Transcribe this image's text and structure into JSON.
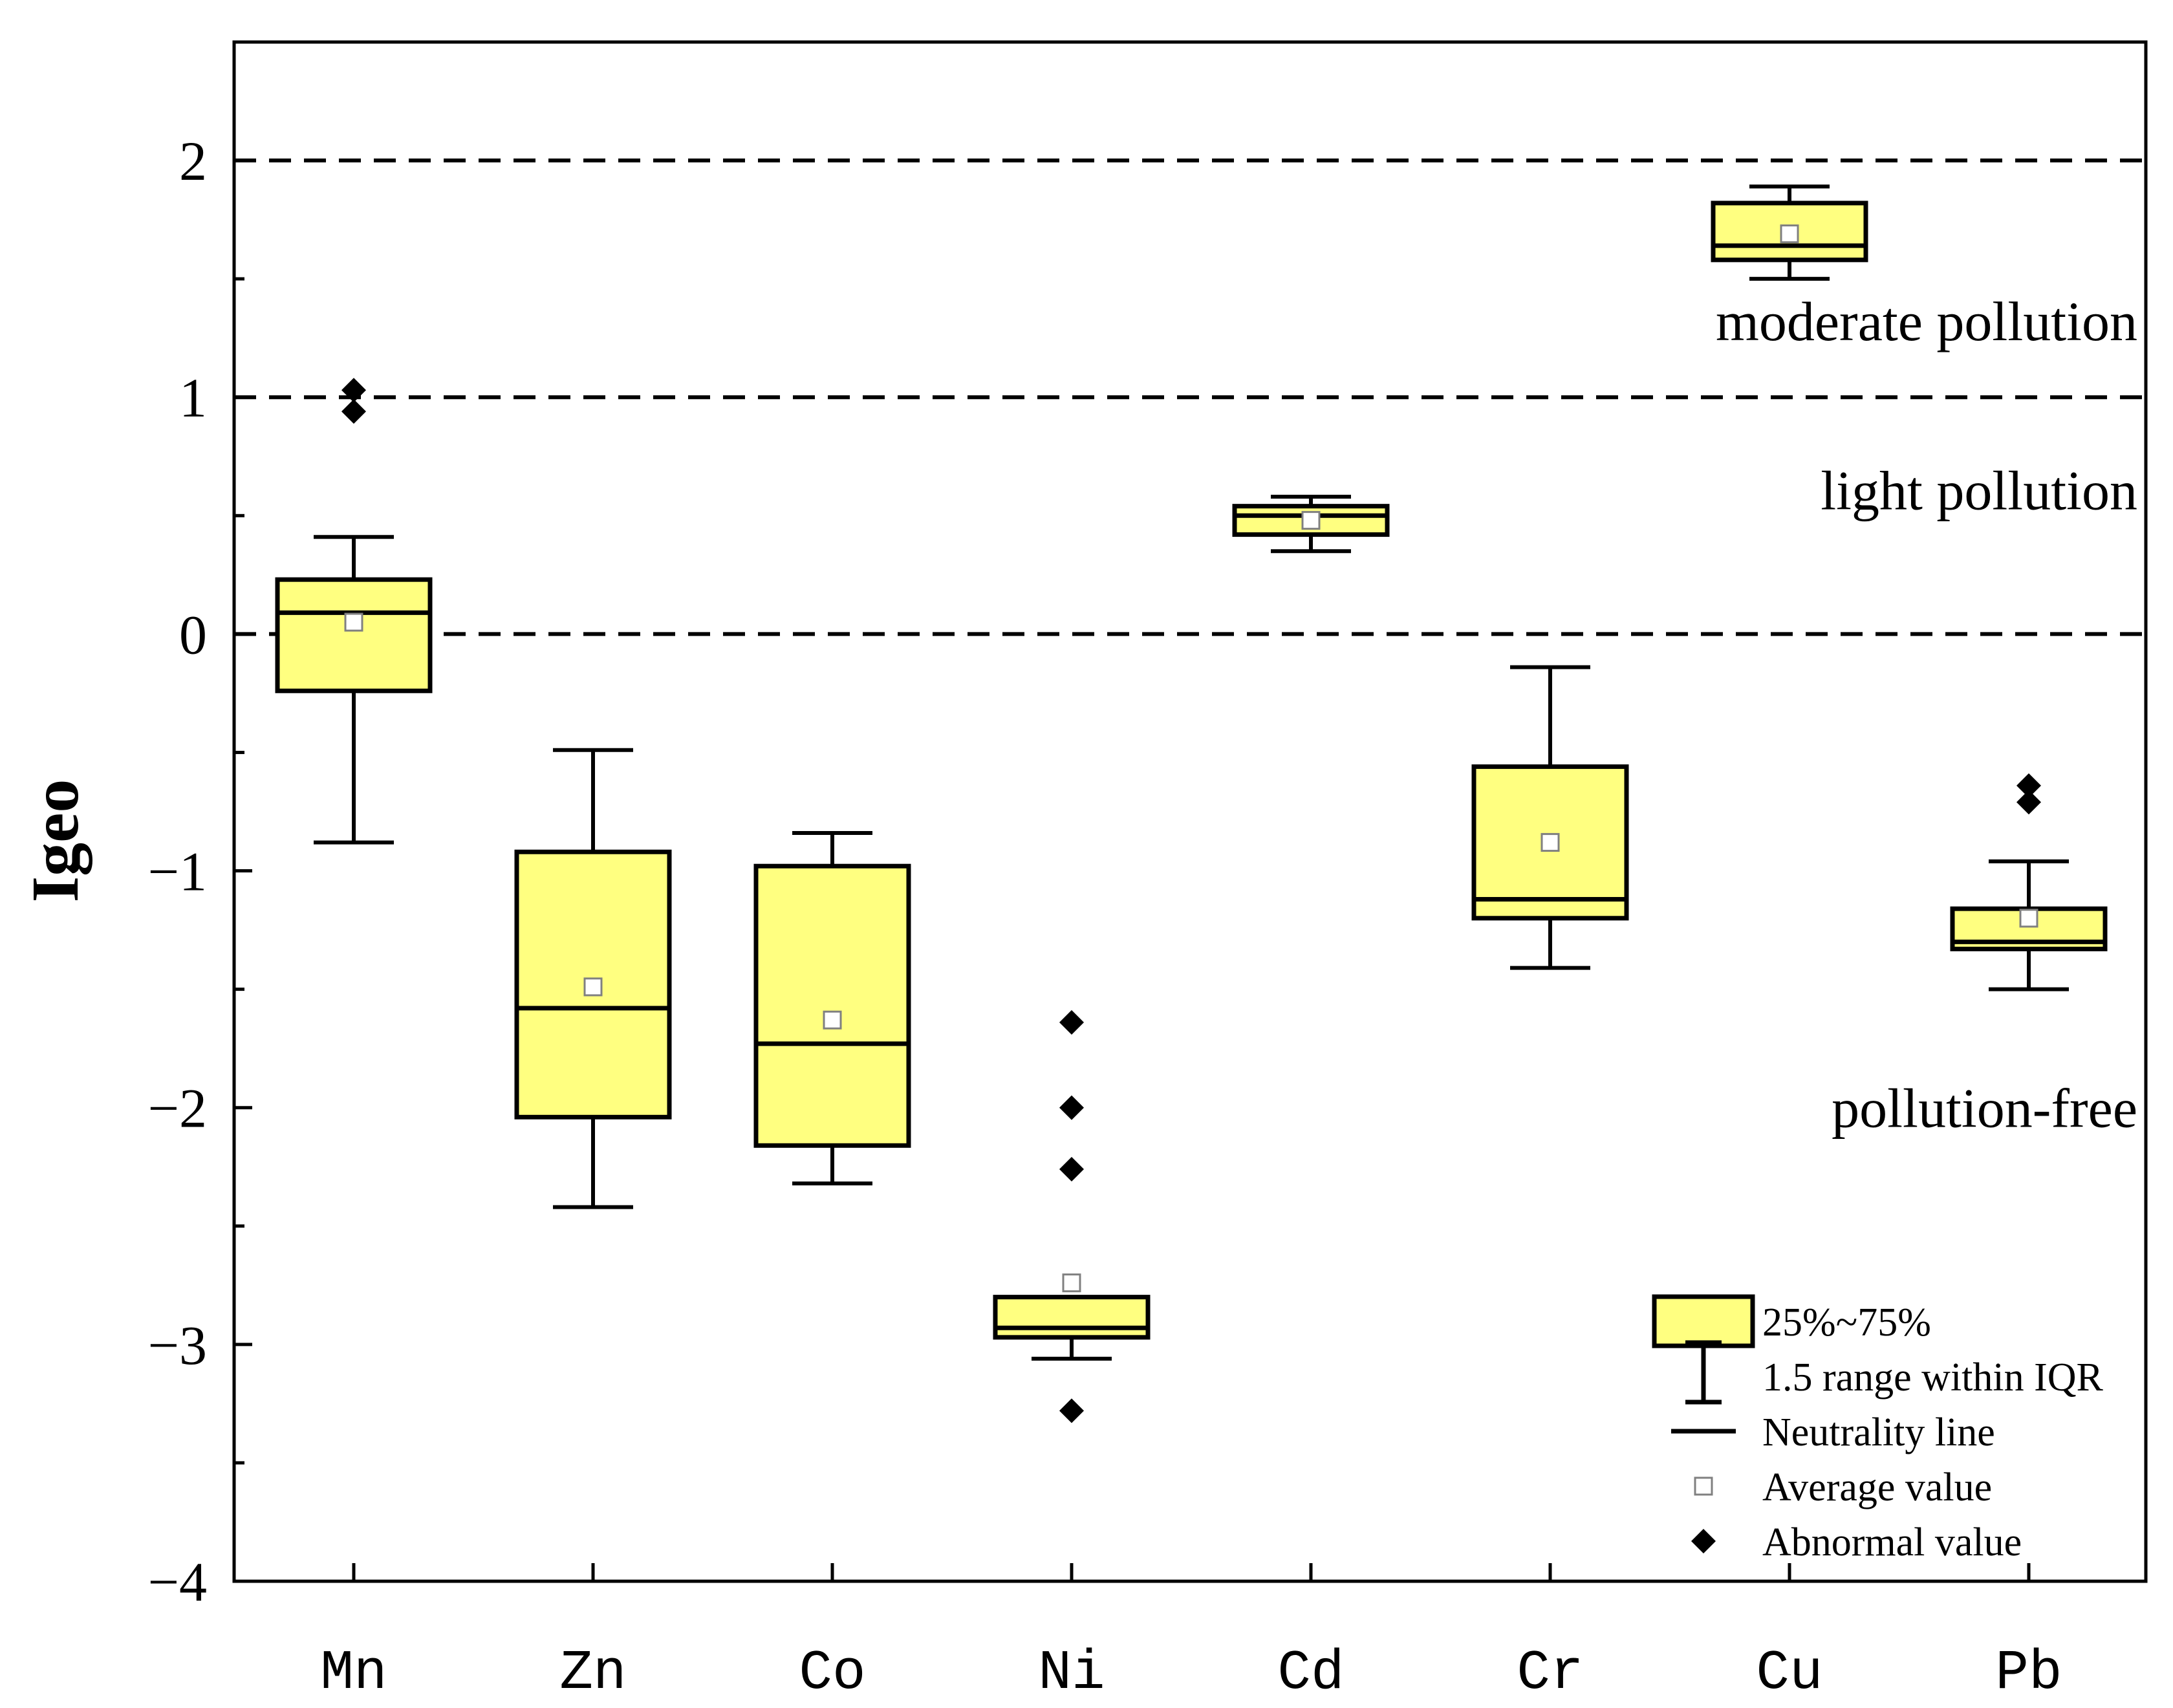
{
  "chart_data": {
    "type": "box",
    "title": "",
    "xlabel": "",
    "ylabel": "Igeo",
    "ylim": [
      -4,
      2.5
    ],
    "yticks": [
      -4,
      -3,
      -2,
      -1,
      0,
      1,
      2
    ],
    "ytick_labels": [
      "−4",
      "−3",
      "−2",
      "−1",
      "0",
      "1",
      "2"
    ],
    "categories": [
      "Mn",
      "Zn",
      "Co",
      "Ni",
      "Cd",
      "Cr",
      "Cu",
      "Pb"
    ],
    "boxes": [
      {
        "name": "Mn",
        "q1": -0.24,
        "median": 0.09,
        "q3": 0.23,
        "whisker_low": -0.88,
        "whisker_high": 0.41,
        "mean": 0.05,
        "outliers": [
          1.03,
          0.94
        ]
      },
      {
        "name": "Zn",
        "q1": -2.04,
        "median": -1.58,
        "q3": -0.92,
        "whisker_low": -2.42,
        "whisker_high": -0.49,
        "mean": -1.49,
        "outliers": []
      },
      {
        "name": "Co",
        "q1": -2.16,
        "median": -1.73,
        "q3": -0.98,
        "whisker_low": -2.32,
        "whisker_high": -0.84,
        "mean": -1.63,
        "outliers": []
      },
      {
        "name": "Ni",
        "q1": -2.97,
        "median": -2.93,
        "q3": -2.8,
        "whisker_low": -3.06,
        "whisker_high": -2.8,
        "mean": -2.74,
        "outliers": [
          -1.64,
          -2.0,
          -2.26,
          -3.28
        ]
      },
      {
        "name": "Cd",
        "q1": 0.42,
        "median": 0.5,
        "q3": 0.54,
        "whisker_low": 0.35,
        "whisker_high": 0.58,
        "mean": 0.48,
        "outliers": []
      },
      {
        "name": "Cr",
        "q1": -1.2,
        "median": -1.12,
        "q3": -0.56,
        "whisker_low": -1.41,
        "whisker_high": -0.14,
        "mean": -0.88,
        "outliers": []
      },
      {
        "name": "Cu",
        "q1": 1.58,
        "median": 1.64,
        "q3": 1.82,
        "whisker_low": 1.5,
        "whisker_high": 1.89,
        "mean": 1.69,
        "outliers": []
      },
      {
        "name": "Pb",
        "q1": -1.33,
        "median": -1.3,
        "q3": -1.16,
        "whisker_low": -1.5,
        "whisker_high": -0.96,
        "mean": -1.2,
        "outliers": [
          -0.64,
          -0.71
        ]
      }
    ],
    "reference_lines": [
      0,
      1,
      2
    ],
    "zones": [
      {
        "label": "moderate pollution",
        "y": 1.5
      },
      {
        "label": "light pollution",
        "y": 0.5
      },
      {
        "label": "pollution-free",
        "y": -2.0
      }
    ],
    "legend": {
      "position": "bottom-right",
      "items": [
        {
          "label": "25%~75%",
          "kind": "box"
        },
        {
          "label": "1.5 range within IQR",
          "kind": "whisker"
        },
        {
          "label": "Neutrality line",
          "kind": "line"
        },
        {
          "label": "Average value",
          "kind": "mean"
        },
        {
          "label": "Abnormal value",
          "kind": "outlier"
        }
      ]
    },
    "colors": {
      "box_fill": "#FFFF80",
      "stroke": "#000000",
      "mean_marker": "#808080"
    }
  }
}
